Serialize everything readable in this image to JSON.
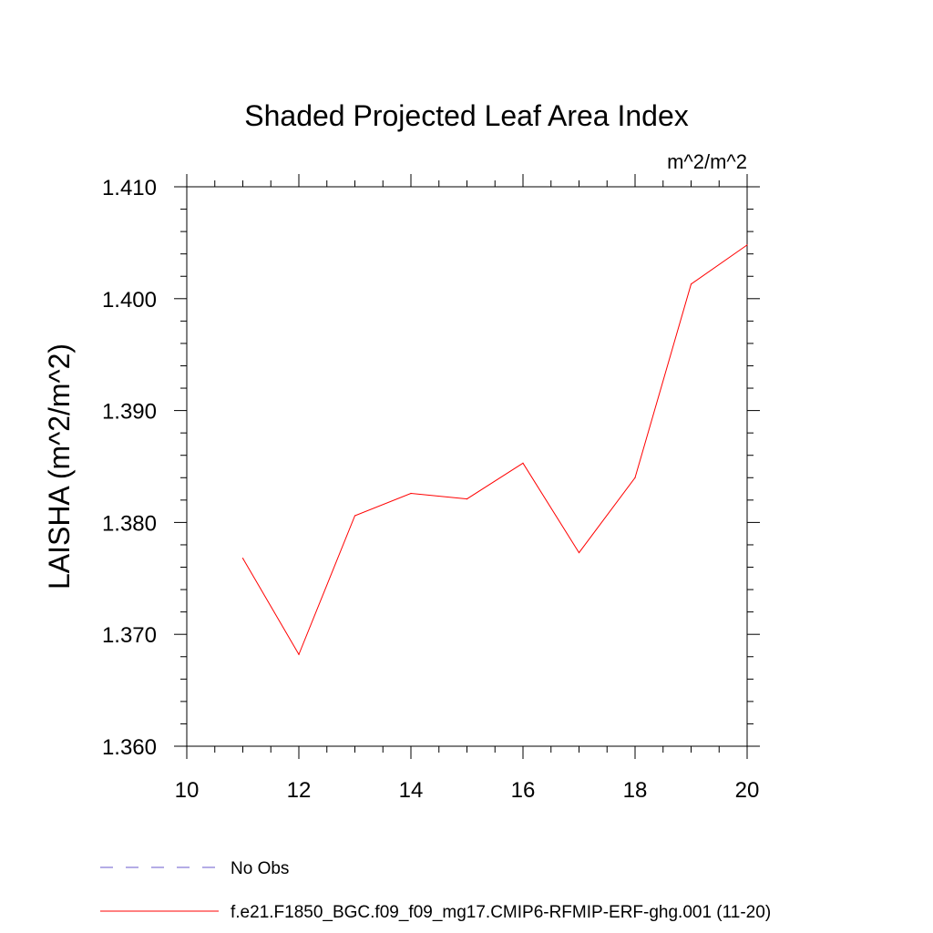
{
  "chart_data": {
    "type": "line",
    "title": "Shaded Projected Leaf Area Index",
    "units_label": "m^2/m^2",
    "ylabel": "LAISHA  (m^2/m^2)",
    "xlabel": "",
    "xlim": [
      10,
      20
    ],
    "ylim": [
      1.36,
      1.41
    ],
    "x_ticks": [
      "10",
      "12",
      "14",
      "16",
      "18",
      "20"
    ],
    "y_ticks": [
      "1.360",
      "1.370",
      "1.380",
      "1.390",
      "1.400",
      "1.410"
    ],
    "series": [
      {
        "name": "f.e21.F1850_BGC.f09_f09_mg17.CMIP6-RFMIP-ERF-ghg.001 (11-20)",
        "color": "#ff0000",
        "x": [
          11,
          12,
          13,
          14,
          15,
          16,
          17,
          18,
          19,
          20
        ],
        "values": [
          1.3768,
          1.3682,
          1.3806,
          1.3826,
          1.3821,
          1.3853,
          1.3773,
          1.384,
          1.4013,
          1.4048
        ]
      }
    ],
    "legend": [
      {
        "label": "No Obs",
        "color": "#6a5acd",
        "style": "dashed"
      },
      {
        "label": "f.e21.F1850_BGC.f09_f09_mg17.CMIP6-RFMIP-ERF-ghg.001 (11-20)",
        "color": "#ff0000",
        "style": "solid"
      }
    ]
  }
}
